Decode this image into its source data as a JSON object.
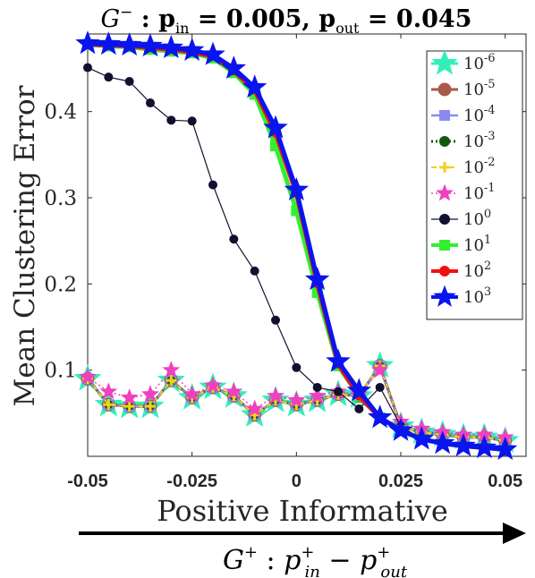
{
  "chart_data": {
    "type": "line",
    "title_parts": {
      "graph": "G",
      "graph_sup": "−",
      "sep": " : ",
      "p": "p",
      "sub_in": "in",
      "val_in": " = 0.005, ",
      "sub_out": "out",
      "val_out": " = 0.045"
    },
    "ylabel": "Mean Clustering Error",
    "xlabel": "Positive Informative",
    "arrow_label_parts": {
      "graph": "G",
      "graph_sup": "+",
      "sep": " : ",
      "p": "p",
      "sup": "+",
      "sub_in": "in",
      "minus": " − ",
      "sub_out": "out"
    },
    "xlim": [
      -0.05,
      0.055
    ],
    "ylim": [
      0.0,
      0.49
    ],
    "xticks": [
      -0.05,
      -0.025,
      0,
      0.025,
      0.05
    ],
    "xtick_labels": [
      "-0.05",
      "-0.025",
      "0",
      "0.025",
      "0.05"
    ],
    "yticks": [
      0.1,
      0.2,
      0.3,
      0.4
    ],
    "ytick_labels": [
      "0.1",
      "0.2",
      "0.3",
      "0.4"
    ],
    "grid": false,
    "legend_position": "top-right",
    "x": [
      -0.05,
      -0.045,
      -0.04,
      -0.035,
      -0.03,
      -0.025,
      -0.02,
      -0.015,
      -0.01,
      -0.005,
      0.0,
      0.005,
      0.01,
      0.015,
      0.02,
      0.025,
      0.03,
      0.035,
      0.04,
      0.045,
      0.05
    ],
    "series": [
      {
        "name": "10",
        "exp": "-6",
        "color": "#33eebb",
        "marker": "star",
        "line": "solid",
        "values": [
          0.09,
          0.06,
          0.058,
          0.058,
          0.088,
          0.068,
          0.08,
          0.07,
          0.048,
          0.065,
          0.06,
          0.065,
          0.072,
          0.07,
          0.105,
          0.035,
          0.028,
          0.025,
          0.022,
          0.022,
          0.018
        ]
      },
      {
        "name": "10",
        "exp": "-5",
        "color": "#a85a48",
        "marker": "circle",
        "line": "solid",
        "values": [
          0.09,
          0.06,
          0.058,
          0.058,
          0.088,
          0.068,
          0.08,
          0.07,
          0.048,
          0.065,
          0.06,
          0.065,
          0.072,
          0.07,
          0.105,
          0.035,
          0.028,
          0.025,
          0.022,
          0.022,
          0.018
        ]
      },
      {
        "name": "10",
        "exp": "-4",
        "color": "#8a8af0",
        "marker": "square",
        "line": "solid",
        "values": [
          0.09,
          0.06,
          0.058,
          0.058,
          0.088,
          0.068,
          0.08,
          0.07,
          0.048,
          0.065,
          0.06,
          0.065,
          0.072,
          0.07,
          0.105,
          0.035,
          0.028,
          0.025,
          0.022,
          0.022,
          0.018
        ]
      },
      {
        "name": "10",
        "exp": "-3",
        "color": "#105a10",
        "marker": "circle",
        "line": "dotted",
        "values": [
          0.09,
          0.06,
          0.058,
          0.058,
          0.088,
          0.068,
          0.08,
          0.07,
          0.048,
          0.065,
          0.06,
          0.065,
          0.072,
          0.07,
          0.105,
          0.035,
          0.028,
          0.025,
          0.022,
          0.022,
          0.018
        ]
      },
      {
        "name": "10",
        "exp": "-2",
        "color": "#f4d020",
        "marker": "plus",
        "line": "dashed",
        "values": [
          0.09,
          0.06,
          0.058,
          0.058,
          0.088,
          0.068,
          0.08,
          0.07,
          0.048,
          0.065,
          0.06,
          0.065,
          0.072,
          0.07,
          0.105,
          0.035,
          0.028,
          0.025,
          0.022,
          0.022,
          0.018
        ]
      },
      {
        "name": "10",
        "exp": "-1",
        "color": "#f040c0",
        "marker": "star",
        "line": "dotted",
        "values": [
          0.092,
          0.075,
          0.068,
          0.072,
          0.1,
          0.072,
          0.082,
          0.075,
          0.055,
          0.07,
          0.065,
          0.07,
          0.075,
          0.072,
          0.1,
          0.04,
          0.032,
          0.028,
          0.025,
          0.025,
          0.022
        ]
      },
      {
        "name": "10",
        "exp": "0",
        "color": "#101030",
        "marker": "circle",
        "line": "solid",
        "values": [
          0.451,
          0.44,
          0.435,
          0.41,
          0.39,
          0.389,
          0.315,
          0.252,
          0.215,
          0.158,
          0.103,
          0.08,
          0.075,
          0.055,
          0.08,
          0.035,
          0.02,
          0.015,
          0.012,
          0.01,
          0.01
        ]
      },
      {
        "name": "10",
        "exp": "1",
        "color": "#30f030",
        "marker": "square",
        "line": "solid",
        "values": [
          0.478,
          0.476,
          0.475,
          0.472,
          0.47,
          0.468,
          0.462,
          0.445,
          0.42,
          0.36,
          0.285,
          0.19,
          0.105,
          0.07,
          0.045,
          0.03,
          0.02,
          0.015,
          0.012,
          0.01,
          0.008
        ]
      },
      {
        "name": "10",
        "exp": "2",
        "color": "#f01010",
        "marker": "circle",
        "line": "solid",
        "values": [
          0.478,
          0.477,
          0.476,
          0.474,
          0.472,
          0.469,
          0.464,
          0.447,
          0.425,
          0.375,
          0.305,
          0.2,
          0.107,
          0.07,
          0.045,
          0.03,
          0.02,
          0.015,
          0.012,
          0.01,
          0.008
        ]
      },
      {
        "name": "10",
        "exp": "3",
        "color": "#0a14ee",
        "marker": "star",
        "line": "solid",
        "values": [
          0.479,
          0.478,
          0.477,
          0.476,
          0.474,
          0.471,
          0.466,
          0.45,
          0.428,
          0.381,
          0.309,
          0.205,
          0.11,
          0.076,
          0.045,
          0.03,
          0.02,
          0.015,
          0.012,
          0.01,
          0.008
        ]
      }
    ]
  }
}
